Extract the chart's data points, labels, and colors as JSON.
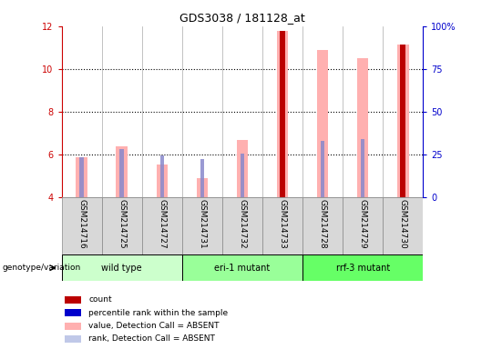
{
  "title": "GDS3038 / 181128_at",
  "samples": [
    "GSM214716",
    "GSM214725",
    "GSM214727",
    "GSM214731",
    "GSM214732",
    "GSM214733",
    "GSM214728",
    "GSM214729",
    "GSM214730"
  ],
  "group_labels": [
    "wild type",
    "eri-1 mutant",
    "rrf-3 mutant"
  ],
  "group_colors": [
    "#ccffcc",
    "#99ff99",
    "#66ff66"
  ],
  "group_ranges": [
    [
      0,
      2
    ],
    [
      3,
      5
    ],
    [
      6,
      8
    ]
  ],
  "bar_bottom": 4.0,
  "ylim_left": [
    4,
    12
  ],
  "ylim_right": [
    0,
    100
  ],
  "yticks_left": [
    4,
    6,
    8,
    10,
    12
  ],
  "yticks_right": [
    0,
    25,
    50,
    75,
    100
  ],
  "pink_bar_top": [
    5.88,
    6.38,
    5.55,
    4.88,
    6.67,
    11.78,
    10.9,
    10.5,
    11.13
  ],
  "blue_bar_top": [
    5.88,
    6.25,
    5.97,
    5.78,
    6.02,
    6.87,
    6.62,
    6.72,
    6.75
  ],
  "red_bar_top": [
    null,
    null,
    null,
    null,
    null,
    11.78,
    null,
    null,
    11.13
  ],
  "pink_color": "#ffb0b0",
  "blue_color": "#8888cc",
  "red_color": "#bb0000",
  "left_axis_color": "#cc0000",
  "right_axis_color": "#0000cc",
  "cell_color": "#d8d8d8",
  "cell_edge_color": "#888888",
  "legend_items": [
    {
      "color": "#bb0000",
      "label": "count"
    },
    {
      "color": "#0000cc",
      "label": "percentile rank within the sample"
    },
    {
      "color": "#ffb0b0",
      "label": "value, Detection Call = ABSENT"
    },
    {
      "color": "#c0c8e8",
      "label": "rank, Detection Call = ABSENT"
    }
  ]
}
